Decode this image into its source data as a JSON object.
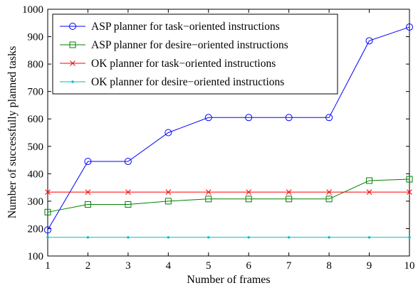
{
  "chart_data": {
    "type": "line",
    "title": "",
    "xlabel": "Number of frames",
    "ylabel": "Number of successfully planned tasks",
    "xlim": [
      1,
      10
    ],
    "ylim": [
      100,
      1000
    ],
    "xticks": [
      1,
      2,
      3,
      4,
      5,
      6,
      7,
      8,
      9,
      10
    ],
    "yticks": [
      100,
      200,
      300,
      400,
      500,
      600,
      700,
      800,
      900,
      1000
    ],
    "grid": false,
    "legend_position": "top-left",
    "x": [
      1,
      2,
      3,
      4,
      5,
      6,
      7,
      8,
      9,
      10
    ],
    "series": [
      {
        "name": "ASP planner for task−oriented instructions",
        "color": "#0000ff",
        "marker": "circle",
        "values": [
          195,
          445,
          445,
          550,
          605,
          605,
          605,
          605,
          885,
          935
        ]
      },
      {
        "name": "ASP planner for desire−oriented instructions",
        "color": "#008000",
        "marker": "square",
        "values": [
          260,
          288,
          288,
          300,
          308,
          308,
          308,
          308,
          375,
          380
        ]
      },
      {
        "name": "OK planner for task−oriented instructions",
        "color": "#ff0000",
        "marker": "x",
        "values": [
          333,
          333,
          333,
          333,
          333,
          333,
          333,
          333,
          333,
          333
        ]
      },
      {
        "name": "OK planner for desire−oriented instructions",
        "color": "#00bfbf",
        "marker": "dot",
        "values": [
          168,
          168,
          168,
          168,
          168,
          168,
          168,
          168,
          168,
          168
        ]
      }
    ]
  }
}
